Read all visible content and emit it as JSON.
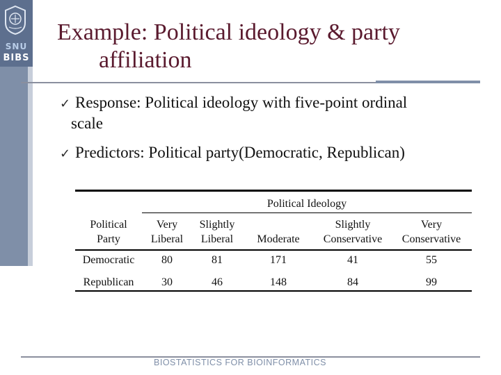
{
  "logo": {
    "top_text": "SNU",
    "bottom_text": "BIBS"
  },
  "slide": {
    "title_line1": "Example: Political ideology & party",
    "title_line2": "affiliation"
  },
  "bullets": [
    {
      "line1": "Response: Political ideology with five-point ordinal",
      "line2": "scale"
    },
    {
      "line1": "Predictors: Political party(Democratic, Republican)"
    }
  ],
  "table": {
    "span_header": "Political Ideology",
    "columns": [
      [
        "Political",
        "Party"
      ],
      [
        "Very",
        "Liberal"
      ],
      [
        "Slightly",
        "Liberal"
      ],
      [
        "",
        "Moderate"
      ],
      [
        "Slightly",
        "Conservative"
      ],
      [
        "Very",
        "Conservative"
      ]
    ],
    "rows": [
      [
        "Democratic",
        "80",
        "81",
        "171",
        "41",
        "55"
      ],
      [
        "Republican",
        "30",
        "46",
        "148",
        "84",
        "99"
      ]
    ]
  },
  "footer": "BIOSTATISTICS FOR BIOINFORMATICS",
  "colors": {
    "title": "#5a1a2e",
    "sidebar": "#7f8fa8",
    "footer": "#7f8fa8"
  },
  "icons": {
    "bullet": "check-mark-icon",
    "logo": "university-emblem-icon"
  }
}
